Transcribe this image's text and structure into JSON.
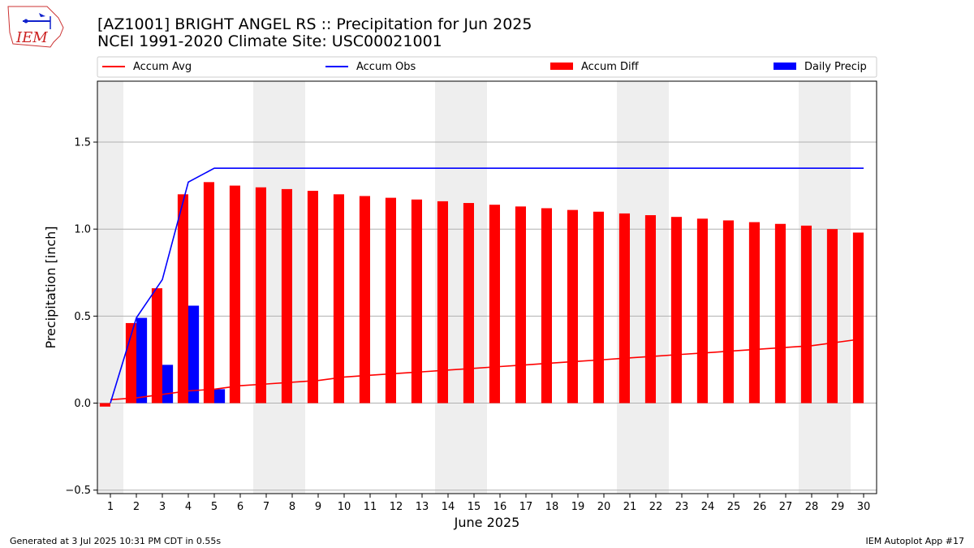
{
  "title_line1": "[AZ1001] BRIGHT ANGEL RS :: Precipitation for Jun 2025",
  "title_line2": "NCEI 1991-2020 Climate Site: USC00021001",
  "logo_text": "IEM",
  "footer_left": "Generated at 3 Jul 2025 10:31 PM CDT in 0.55s",
  "footer_right": "IEM Autoplot App #17",
  "colors": {
    "accum_avg": "#ff0000",
    "accum_obs": "#0000ff",
    "accum_diff": "#ff0000",
    "daily_precip": "#0000ff",
    "weekend_band": "#eeeeee",
    "grid": "#b0b0b0"
  },
  "chart_data": {
    "type": "bar",
    "xlabel": "June 2025",
    "ylabel": "Precipitation [inch]",
    "ylim": [
      -0.52,
      1.85
    ],
    "yticks": [
      -0.5,
      0.0,
      0.5,
      1.0,
      1.5
    ],
    "ytick_labels": [
      "−0.5",
      "0.0",
      "0.5",
      "1.0",
      "1.5"
    ],
    "grid": true,
    "legend_position": "top",
    "x": [
      1,
      2,
      3,
      4,
      5,
      6,
      7,
      8,
      9,
      10,
      11,
      12,
      13,
      14,
      15,
      16,
      17,
      18,
      19,
      20,
      21,
      22,
      23,
      24,
      25,
      26,
      27,
      28,
      29,
      30
    ],
    "weekend_days": [
      1,
      7,
      8,
      14,
      15,
      21,
      22,
      28,
      29
    ],
    "series": [
      {
        "name": "Accum Avg",
        "kind": "line",
        "values": [
          0.02,
          0.03,
          0.05,
          0.07,
          0.08,
          0.1,
          0.11,
          0.12,
          0.13,
          0.15,
          0.16,
          0.17,
          0.18,
          0.19,
          0.2,
          0.21,
          0.22,
          0.23,
          0.24,
          0.25,
          0.26,
          0.27,
          0.28,
          0.29,
          0.3,
          0.31,
          0.32,
          0.33,
          0.35,
          0.37
        ]
      },
      {
        "name": "Accum Obs",
        "kind": "line",
        "values": [
          0.0,
          0.49,
          0.71,
          1.27,
          1.35,
          1.35,
          1.35,
          1.35,
          1.35,
          1.35,
          1.35,
          1.35,
          1.35,
          1.35,
          1.35,
          1.35,
          1.35,
          1.35,
          1.35,
          1.35,
          1.35,
          1.35,
          1.35,
          1.35,
          1.35,
          1.35,
          1.35,
          1.35,
          1.35,
          1.35
        ]
      },
      {
        "name": "Accum Diff",
        "kind": "bar",
        "values": [
          -0.02,
          0.46,
          0.66,
          1.2,
          1.27,
          1.25,
          1.24,
          1.23,
          1.22,
          1.2,
          1.19,
          1.18,
          1.17,
          1.16,
          1.15,
          1.14,
          1.13,
          1.12,
          1.11,
          1.1,
          1.09,
          1.08,
          1.07,
          1.06,
          1.05,
          1.04,
          1.03,
          1.02,
          1.0,
          0.98
        ]
      },
      {
        "name": "Daily Precip",
        "kind": "bar",
        "values": [
          0.0,
          0.49,
          0.22,
          0.56,
          0.08,
          0,
          0,
          0,
          0,
          0,
          0,
          0,
          0,
          0,
          0,
          0,
          0,
          0,
          0,
          0,
          0,
          0,
          0,
          0,
          0,
          0,
          0,
          0,
          0,
          0
        ]
      }
    ]
  }
}
